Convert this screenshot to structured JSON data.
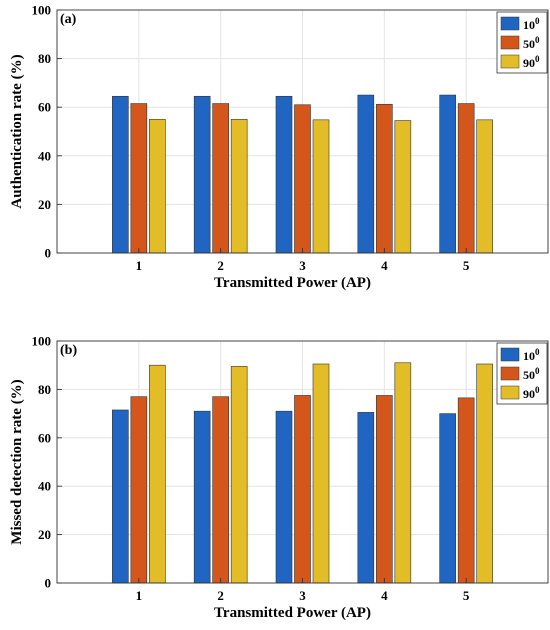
{
  "chart_data": [
    {
      "type": "bar",
      "panel_tag": "(a)",
      "categories": [
        "1",
        "2",
        "3",
        "4",
        "5"
      ],
      "series": [
        {
          "name": "10",
          "sup": "0",
          "color": "#1f65c1",
          "values": [
            64.5,
            64.5,
            64.5,
            65.0,
            65.0
          ]
        },
        {
          "name": "50",
          "sup": "0",
          "color": "#d4561b",
          "values": [
            61.5,
            61.5,
            61.0,
            61.2,
            61.5
          ]
        },
        {
          "name": "90",
          "sup": "0",
          "color": "#e3bd27",
          "values": [
            55.0,
            55.0,
            54.8,
            54.5,
            54.8
          ]
        }
      ],
      "xlabel": "Transmitted Power (AP)",
      "ylabel": "Authentication rate (%)",
      "ylim": [
        0,
        100
      ],
      "yticks": [
        "0",
        "20",
        "40",
        "60",
        "80",
        "100"
      ],
      "grid": true,
      "legend_position": "top-right"
    },
    {
      "type": "bar",
      "panel_tag": "(b)",
      "categories": [
        "1",
        "2",
        "3",
        "4",
        "5"
      ],
      "series": [
        {
          "name": "10",
          "sup": "0",
          "color": "#1f65c1",
          "values": [
            71.5,
            71.0,
            71.0,
            70.5,
            70.0
          ]
        },
        {
          "name": "50",
          "sup": "0",
          "color": "#d4561b",
          "values": [
            77.0,
            77.0,
            77.5,
            77.5,
            76.5
          ]
        },
        {
          "name": "90",
          "sup": "0",
          "color": "#e3bd27",
          "values": [
            90.0,
            89.5,
            90.5,
            91.0,
            90.5
          ]
        }
      ],
      "xlabel": "Transmitted Power (AP)",
      "ylabel": "Missed detection rate (%)",
      "ylim": [
        0,
        100
      ],
      "yticks": [
        "0",
        "20",
        "40",
        "60",
        "80",
        "100"
      ],
      "grid": true,
      "legend_position": "top-right"
    }
  ]
}
